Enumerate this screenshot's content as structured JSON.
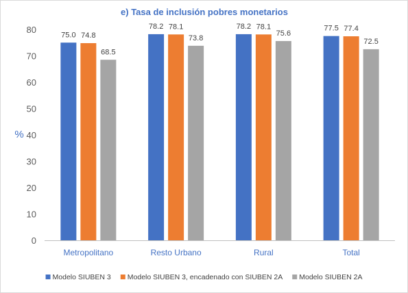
{
  "chart_data": {
    "type": "bar",
    "title": "e) Tasa de inclusión pobres monetarios",
    "ylabel": "%",
    "xlabel": "",
    "ylim": [
      0,
      80
    ],
    "yticks": [
      0,
      10,
      20,
      30,
      40,
      50,
      60,
      70,
      80
    ],
    "grid": false,
    "legend_position": "bottom",
    "categories": [
      "Metropolitano",
      "Resto Urbano",
      "Rural",
      "Total"
    ],
    "series": [
      {
        "name": "Modelo SIUBEN 3",
        "color": "#4472c4",
        "values": [
          75.0,
          78.2,
          78.2,
          77.5
        ],
        "labels": [
          "75.0",
          "78.2",
          "78.2",
          "77.5"
        ]
      },
      {
        "name": "Modelo SIUBEN 3, encadenado con SIUBEN 2A",
        "color": "#ed7d31",
        "values": [
          74.8,
          78.1,
          78.1,
          77.4
        ],
        "labels": [
          "74.8",
          "78.1",
          "78.1",
          "77.4"
        ]
      },
      {
        "name": "Modelo SIUBEN 2A",
        "color": "#a5a5a5",
        "values": [
          68.5,
          73.8,
          75.6,
          72.5
        ],
        "labels": [
          "68.5",
          "73.8",
          "75.6",
          "72.5"
        ]
      }
    ],
    "colors": {
      "title": "#4472c4",
      "axis_label": "#4472c4",
      "category_label": "#4472c4",
      "axis_line": "#bfbfbf"
    }
  }
}
